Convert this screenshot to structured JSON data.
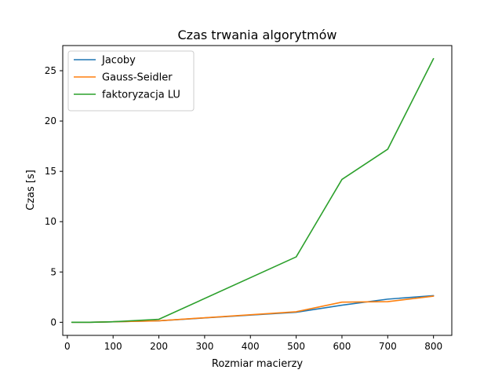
{
  "chart_data": {
    "type": "line",
    "title": "Czas trwania algorytmów",
    "xlabel": "Rozmiar macierzy",
    "ylabel": "Czas [s]",
    "xlim": [
      -10,
      840
    ],
    "ylim": [
      -1.3,
      27.5
    ],
    "xticks": [
      0,
      100,
      200,
      300,
      400,
      500,
      600,
      700,
      800
    ],
    "yticks": [
      0,
      5,
      10,
      15,
      20,
      25
    ],
    "grid": false,
    "legend_position": "top-left",
    "series": [
      {
        "name": "Jacoby",
        "color": "#1f77b4",
        "x": [
          10,
          50,
          100,
          200,
          500,
          600,
          700,
          800
        ],
        "y": [
          0.0,
          0.0,
          0.05,
          0.15,
          1.0,
          1.7,
          2.3,
          2.65
        ]
      },
      {
        "name": "Gauss-Seidler",
        "color": "#ff7f0e",
        "x": [
          10,
          50,
          100,
          200,
          500,
          600,
          700,
          800
        ],
        "y": [
          0.0,
          0.0,
          0.05,
          0.15,
          1.05,
          2.0,
          2.05,
          2.6
        ]
      },
      {
        "name": "faktoryzacja LU",
        "color": "#2ca02c",
        "x": [
          10,
          50,
          100,
          200,
          500,
          600,
          700,
          800
        ],
        "y": [
          0.0,
          0.0,
          0.05,
          0.3,
          6.5,
          14.2,
          17.2,
          26.2
        ]
      }
    ]
  }
}
